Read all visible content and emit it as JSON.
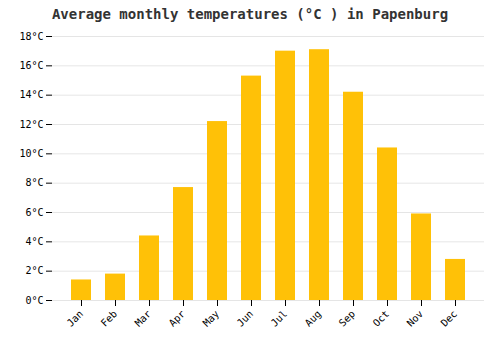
{
  "chart_data": {
    "type": "bar",
    "title": "Average monthly temperatures (°C ) in Papenburg",
    "categories": [
      "Jan",
      "Feb",
      "Mar",
      "Apr",
      "May",
      "Jun",
      "Jul",
      "Aug",
      "Sep",
      "Oct",
      "Nov",
      "Dec"
    ],
    "values": [
      1.4,
      1.8,
      4.4,
      7.7,
      12.2,
      15.3,
      17.0,
      17.1,
      14.2,
      10.4,
      5.9,
      2.8
    ],
    "color": "#FFC107",
    "ylim": [
      0,
      18
    ],
    "yticks": [
      {
        "value": 0,
        "label": "0°C"
      },
      {
        "value": 2,
        "label": "2°C"
      },
      {
        "value": 4,
        "label": "4°C"
      },
      {
        "value": 6,
        "label": "6°C"
      },
      {
        "value": 8,
        "label": "8°C"
      },
      {
        "value": 10,
        "label": "10°C"
      },
      {
        "value": 12,
        "label": "12°C"
      },
      {
        "value": 14,
        "label": "14°C"
      },
      {
        "value": 16,
        "label": "16°C"
      },
      {
        "value": 18,
        "label": "18°C"
      }
    ],
    "grid": true
  }
}
